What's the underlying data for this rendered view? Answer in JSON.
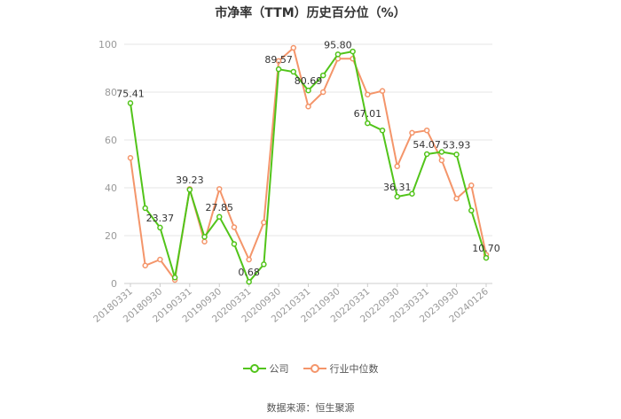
{
  "title": "市净率（TTM）历史百分位（%）",
  "source": "数据来源：恒生聚源",
  "colors": {
    "company": "#52c41a",
    "industry": "#f4956a",
    "grid": "#e6e6e6",
    "axis_text": "#999999"
  },
  "chart_data": {
    "type": "line",
    "title": "市净率（TTM）历史百分位（%）",
    "ylim": [
      0,
      100
    ],
    "yticks": [
      0,
      20,
      40,
      60,
      80,
      100
    ],
    "x": [
      "20180331",
      "20180630",
      "20180930",
      "20181231",
      "20190331",
      "20190630",
      "20190930",
      "20191231",
      "20200331",
      "20200630",
      "20200930",
      "20201231",
      "20210331",
      "20210630",
      "20210930",
      "20211231",
      "20220331",
      "20220630",
      "20220930",
      "20221231",
      "20230331",
      "20230630",
      "20230930",
      "20231231",
      "20240126"
    ],
    "xtick_labels": [
      "20180331",
      "20180930",
      "20190331",
      "20190930",
      "20200331",
      "20200930",
      "20210331",
      "20210930",
      "20220331",
      "20220930",
      "20230331",
      "20230930",
      "20240126"
    ],
    "legend": {
      "position": "bottom"
    },
    "series": [
      {
        "name": "公司",
        "color": "#52c41a",
        "values": [
          75.41,
          31.5,
          23.37,
          2.5,
          39.23,
          19.5,
          27.85,
          16.5,
          0.68,
          8.0,
          89.57,
          88.5,
          80.69,
          87.0,
          95.8,
          97.0,
          67.01,
          64.0,
          36.31,
          37.5,
          54.07,
          55.0,
          53.93,
          30.5,
          10.7
        ]
      },
      {
        "name": "行业中位数",
        "color": "#f4956a",
        "values": [
          52.5,
          7.5,
          10.0,
          1.5,
          39.5,
          17.5,
          39.5,
          23.5,
          10.0,
          25.5,
          93.0,
          98.5,
          74.0,
          80.0,
          94.0,
          94.0,
          79.0,
          80.5,
          49.0,
          63.0,
          64.0,
          51.5,
          35.5,
          41.0,
          12.0
        ]
      }
    ],
    "data_labels": [
      {
        "index": 0,
        "text": "75.41"
      },
      {
        "index": 2,
        "text": "23.37"
      },
      {
        "index": 4,
        "text": "39.23"
      },
      {
        "index": 6,
        "text": "27.85"
      },
      {
        "index": 8,
        "text": "0.68"
      },
      {
        "index": 10,
        "text": "89.57"
      },
      {
        "index": 12,
        "text": "80.69"
      },
      {
        "index": 14,
        "text": "95.80"
      },
      {
        "index": 16,
        "text": "67.01"
      },
      {
        "index": 18,
        "text": "36.31"
      },
      {
        "index": 20,
        "text": "54.07"
      },
      {
        "index": 22,
        "text": "53.93"
      },
      {
        "index": 24,
        "text": "10.70"
      }
    ]
  }
}
